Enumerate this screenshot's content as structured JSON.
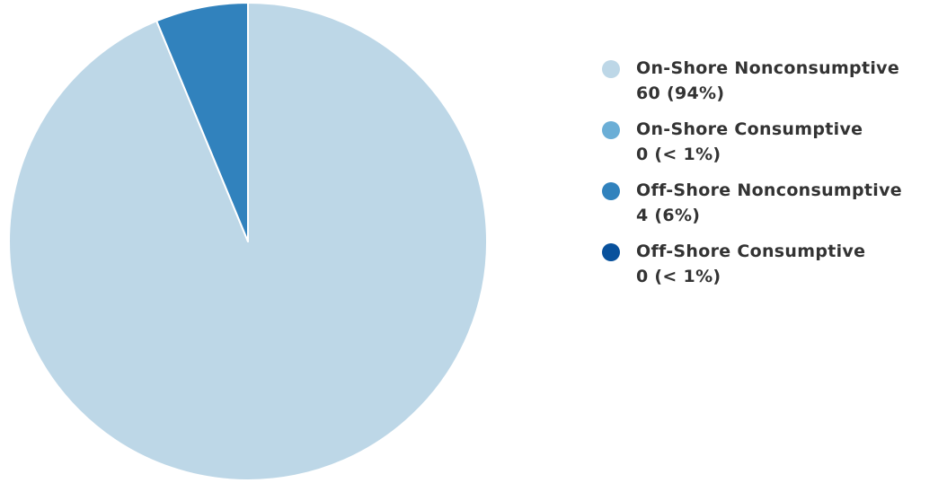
{
  "chart_data": {
    "type": "pie",
    "title": "",
    "start_angle": "top",
    "direction": "clockwise",
    "legend_position": "right",
    "slices": [
      {
        "label": "On-Shore Nonconsumptive",
        "value": 60,
        "display": "60 (94%)",
        "color": "#bdd7e7"
      },
      {
        "label": "On-Shore Consumptive",
        "value": 0,
        "display": "0 (< 1%)",
        "color": "#6baed6"
      },
      {
        "label": "Off-Shore Nonconsumptive",
        "value": 4,
        "display": "4 (6%)",
        "color": "#3182bd"
      },
      {
        "label": "Off-Shore Consumptive",
        "value": 0,
        "display": "0 (< 1%)",
        "color": "#08519c"
      }
    ]
  }
}
